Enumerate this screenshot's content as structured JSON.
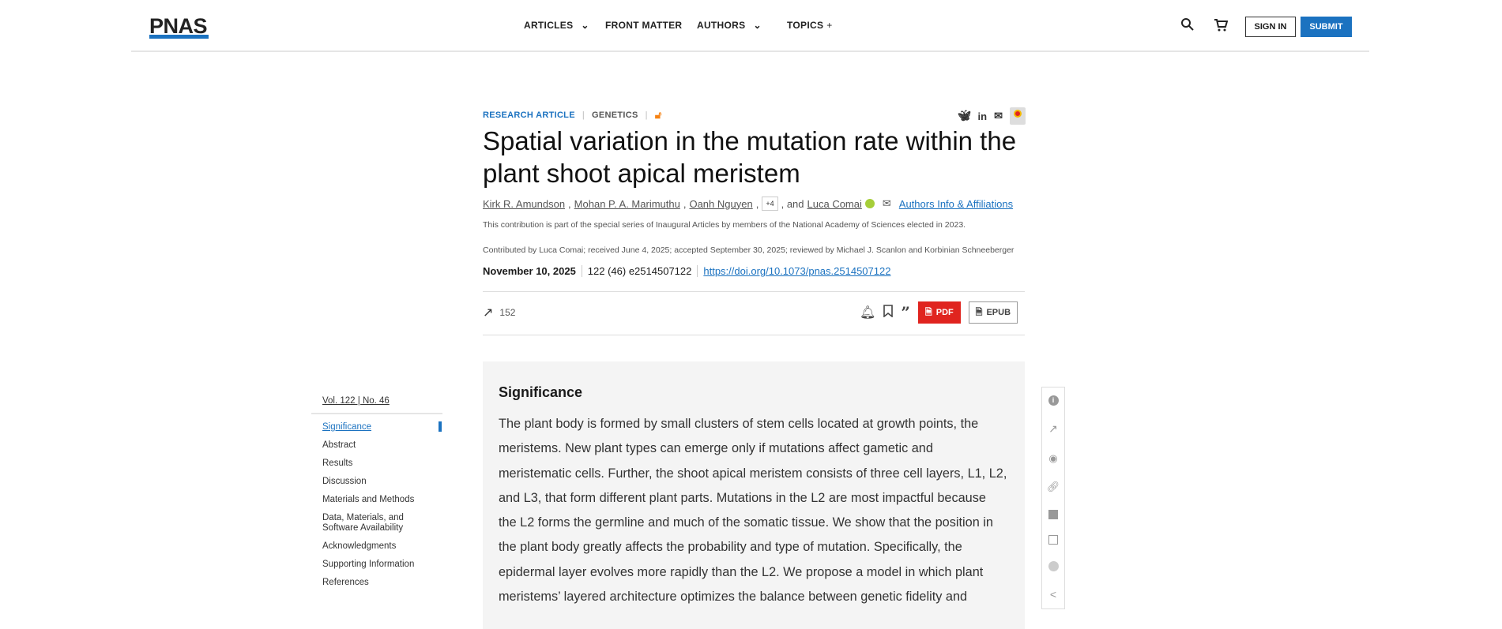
{
  "header": {
    "logo": "PNAS",
    "nav": [
      {
        "label": "ARTICLES",
        "icon": "chevron-down-icon"
      },
      {
        "label": "FRONT MATTER"
      },
      {
        "label": "AUTHORS",
        "icon": "chevron-down-icon"
      },
      {
        "label": "TOPICS",
        "icon": "plus-icon"
      }
    ],
    "sign_in": "SIGN IN",
    "submit": "SUBMIT",
    "accent": "#1b72c0"
  },
  "article": {
    "type": "RESEARCH ARTICLE",
    "category": "GENETICS",
    "title": "Spatial variation in the mutation rate within the plant shoot apical meristem",
    "authors": [
      "Kirk R. Amundson",
      "Mohan P. A. Marimuthu",
      "Oanh Nguyen"
    ],
    "more_authors": "+4",
    "and": ", and",
    "last_author": "Luca Comai",
    "affiliations": "Authors Info & Affiliations",
    "contribution": "This contribution is part of the special series of Inaugural Articles by members of the National Academy of Sciences elected in 2023.",
    "contributed": "Contributed by Luca Comai; received June 4, 2025; accepted September 30, 2025; reviewed by Michael J. Scanlon and Korbinian Schneeberger",
    "date": "November 10, 2025",
    "citation": "122 (46) e2514507122",
    "doi": "https://doi.org/10.1073/pnas.2514507122",
    "metric": "152",
    "pdf": "PDF",
    "epub": "EPUB",
    "pdf_color": "#e0241f"
  },
  "sidebar": {
    "volume": "Vol. 122 | No. 46",
    "items": [
      "Significance",
      "Abstract",
      "Results",
      "Discussion",
      "Materials and Methods",
      "Data, Materials, and Software Availability",
      "Acknowledgments",
      "Supporting Information",
      "References"
    ],
    "active": "Significance"
  },
  "significance": {
    "heading": "Significance",
    "lines": [
      "The plant body is formed by small clusters of stem cells located at growth points, the",
      "meristems. New plant types can emerge only if mutations affect gametic and",
      "meristematic cells. Further, the shoot apical meristem consists of three cell layers, L1, L2,",
      "and L3, that form different plant parts. Mutations in the L2 are most impactful because",
      "the L2 forms the germline and much of the somatic tissue. We show that the position in",
      "the plant body greatly affects the probability and type of mutation. Specifically, the",
      "epidermal layer evolves more rapidly than the L2. We propose a model in which plant",
      "meristems’ layered architecture optimizes the balance between genetic fidelity and"
    ]
  },
  "toolbar": [
    "info-icon",
    "metrics-icon",
    "view-icon",
    "link-icon",
    "figures-icon",
    "tables-icon",
    "media-icon",
    "share-icon"
  ]
}
